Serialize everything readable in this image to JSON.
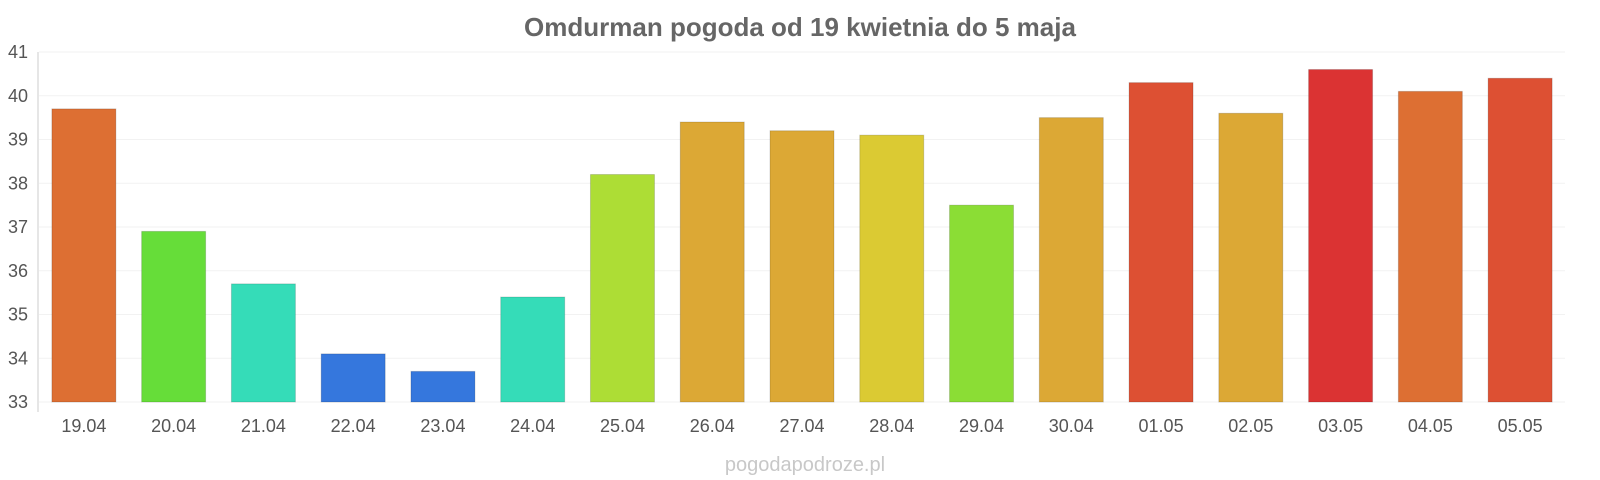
{
  "chart_data": {
    "type": "bar",
    "title": "Omdurman pogoda od 19 kwietnia do 5 maja",
    "xlabel": "",
    "ylabel": "",
    "ylim": [
      33,
      41
    ],
    "yticks": [
      "33",
      "34",
      "35",
      "36",
      "37",
      "38",
      "39",
      "40",
      "41"
    ],
    "grid": true,
    "categories": [
      "19.04",
      "20.04",
      "21.04",
      "22.04",
      "23.04",
      "24.04",
      "25.04",
      "26.04",
      "27.04",
      "28.04",
      "29.04",
      "30.04",
      "01.05",
      "02.05",
      "03.05",
      "04.05",
      "05.05"
    ],
    "values": [
      39.7,
      36.9,
      35.7,
      34.1,
      33.7,
      35.4,
      38.2,
      39.4,
      39.2,
      39.1,
      37.5,
      39.5,
      40.3,
      39.6,
      40.6,
      40.1,
      40.4
    ],
    "colors": [
      "#dd6f33",
      "#66dd39",
      "#35dcb8",
      "#3577dd",
      "#3577dd",
      "#35dcb8",
      "#addd35",
      "#dca835",
      "#dca835",
      "#dbca33",
      "#8bdd35",
      "#dca835",
      "#dd5033",
      "#dca835",
      "#db3333",
      "#dd6f33",
      "#dd5033"
    ]
  },
  "footer": {
    "watermark": "pogodapodroze.pl"
  }
}
